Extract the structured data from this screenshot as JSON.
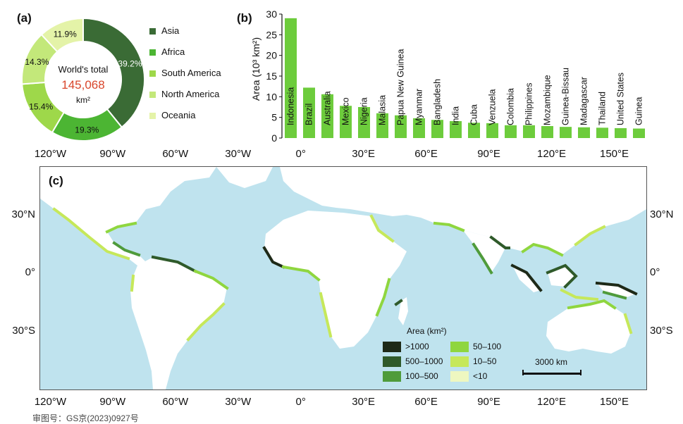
{
  "panels": {
    "a": "(a)",
    "b": "(b)",
    "c": "(c)"
  },
  "chart_data": [
    {
      "type": "pie",
      "panel": "(a)",
      "center_text": {
        "line1": "World's total",
        "value": "145,068",
        "unit": "km²"
      },
      "slices": [
        {
          "name": "Asia",
          "value": 39.2,
          "label": "39.2%",
          "color": "#3a6b35"
        },
        {
          "name": "Africa",
          "value": 19.3,
          "label": "19.3%",
          "color": "#4cb533"
        },
        {
          "name": "South America",
          "value": 15.4,
          "label": "15.4%",
          "color": "#9ed84a"
        },
        {
          "name": "North America",
          "value": 14.3,
          "label": "14.3%",
          "color": "#c3e87a"
        },
        {
          "name": "Oceania",
          "value": 11.9,
          "label": "11.9%",
          "color": "#e4f3a8"
        }
      ]
    },
    {
      "type": "bar",
      "panel": "(b)",
      "ylabel": "Area (10³ km²)",
      "ylim": [
        0,
        30
      ],
      "yticks": [
        "0",
        "5",
        "10",
        "15",
        "20",
        "25",
        "30"
      ],
      "bar_color": "#6dcc3c",
      "categories": [
        "Indonesia",
        "Brazil",
        "Australia",
        "Mexico",
        "Nigeria",
        "Malasia",
        "Papua New Guinea",
        "Myanmar",
        "Bangladesh",
        "India",
        "Cuba",
        "Venzuela",
        "Colombia",
        "Philippines",
        "Mozambique",
        "Guinea-Bissau",
        "Madagascar",
        "Thailand",
        "United States",
        "Guinea"
      ],
      "values": [
        29,
        12.2,
        10.6,
        7.8,
        7.5,
        6.0,
        5.5,
        4.8,
        4.4,
        4.1,
        3.7,
        3.6,
        3.1,
        3.1,
        2.9,
        2.7,
        2.6,
        2.5,
        2.4,
        2.3
      ]
    }
  ],
  "map": {
    "x_ticks": [
      "120°W",
      "90°W",
      "60°W",
      "30°W",
      "0°",
      "30°E",
      "60°E",
      "90°E",
      "120°E",
      "150°E"
    ],
    "x_tick_lons": [
      -120,
      -90,
      -60,
      -30,
      0,
      30,
      60,
      90,
      120,
      150
    ],
    "y_ticks": [
      "30°N",
      "0°",
      "30°S"
    ],
    "y_tick_lats": [
      30,
      0,
      -30
    ],
    "legend": {
      "title": "Area (km²)",
      "items": [
        {
          "label": ">1000",
          "color": "#1e2a18"
        },
        {
          "label": "500–1000",
          "color": "#2f5a2a"
        },
        {
          "label": "100–500",
          "color": "#4f9b3b"
        },
        {
          "label": "50–100",
          "color": "#8fd63f"
        },
        {
          "label": "10–50",
          "color": "#c6e85a"
        },
        {
          "label": "<10",
          "color": "#eef7c0"
        }
      ]
    },
    "scale_bar": "3000 km",
    "ocean_color": "#bfe3ee",
    "land_color": "#ffffff"
  },
  "approval_number": "审图号：GS京(2023)0927号"
}
